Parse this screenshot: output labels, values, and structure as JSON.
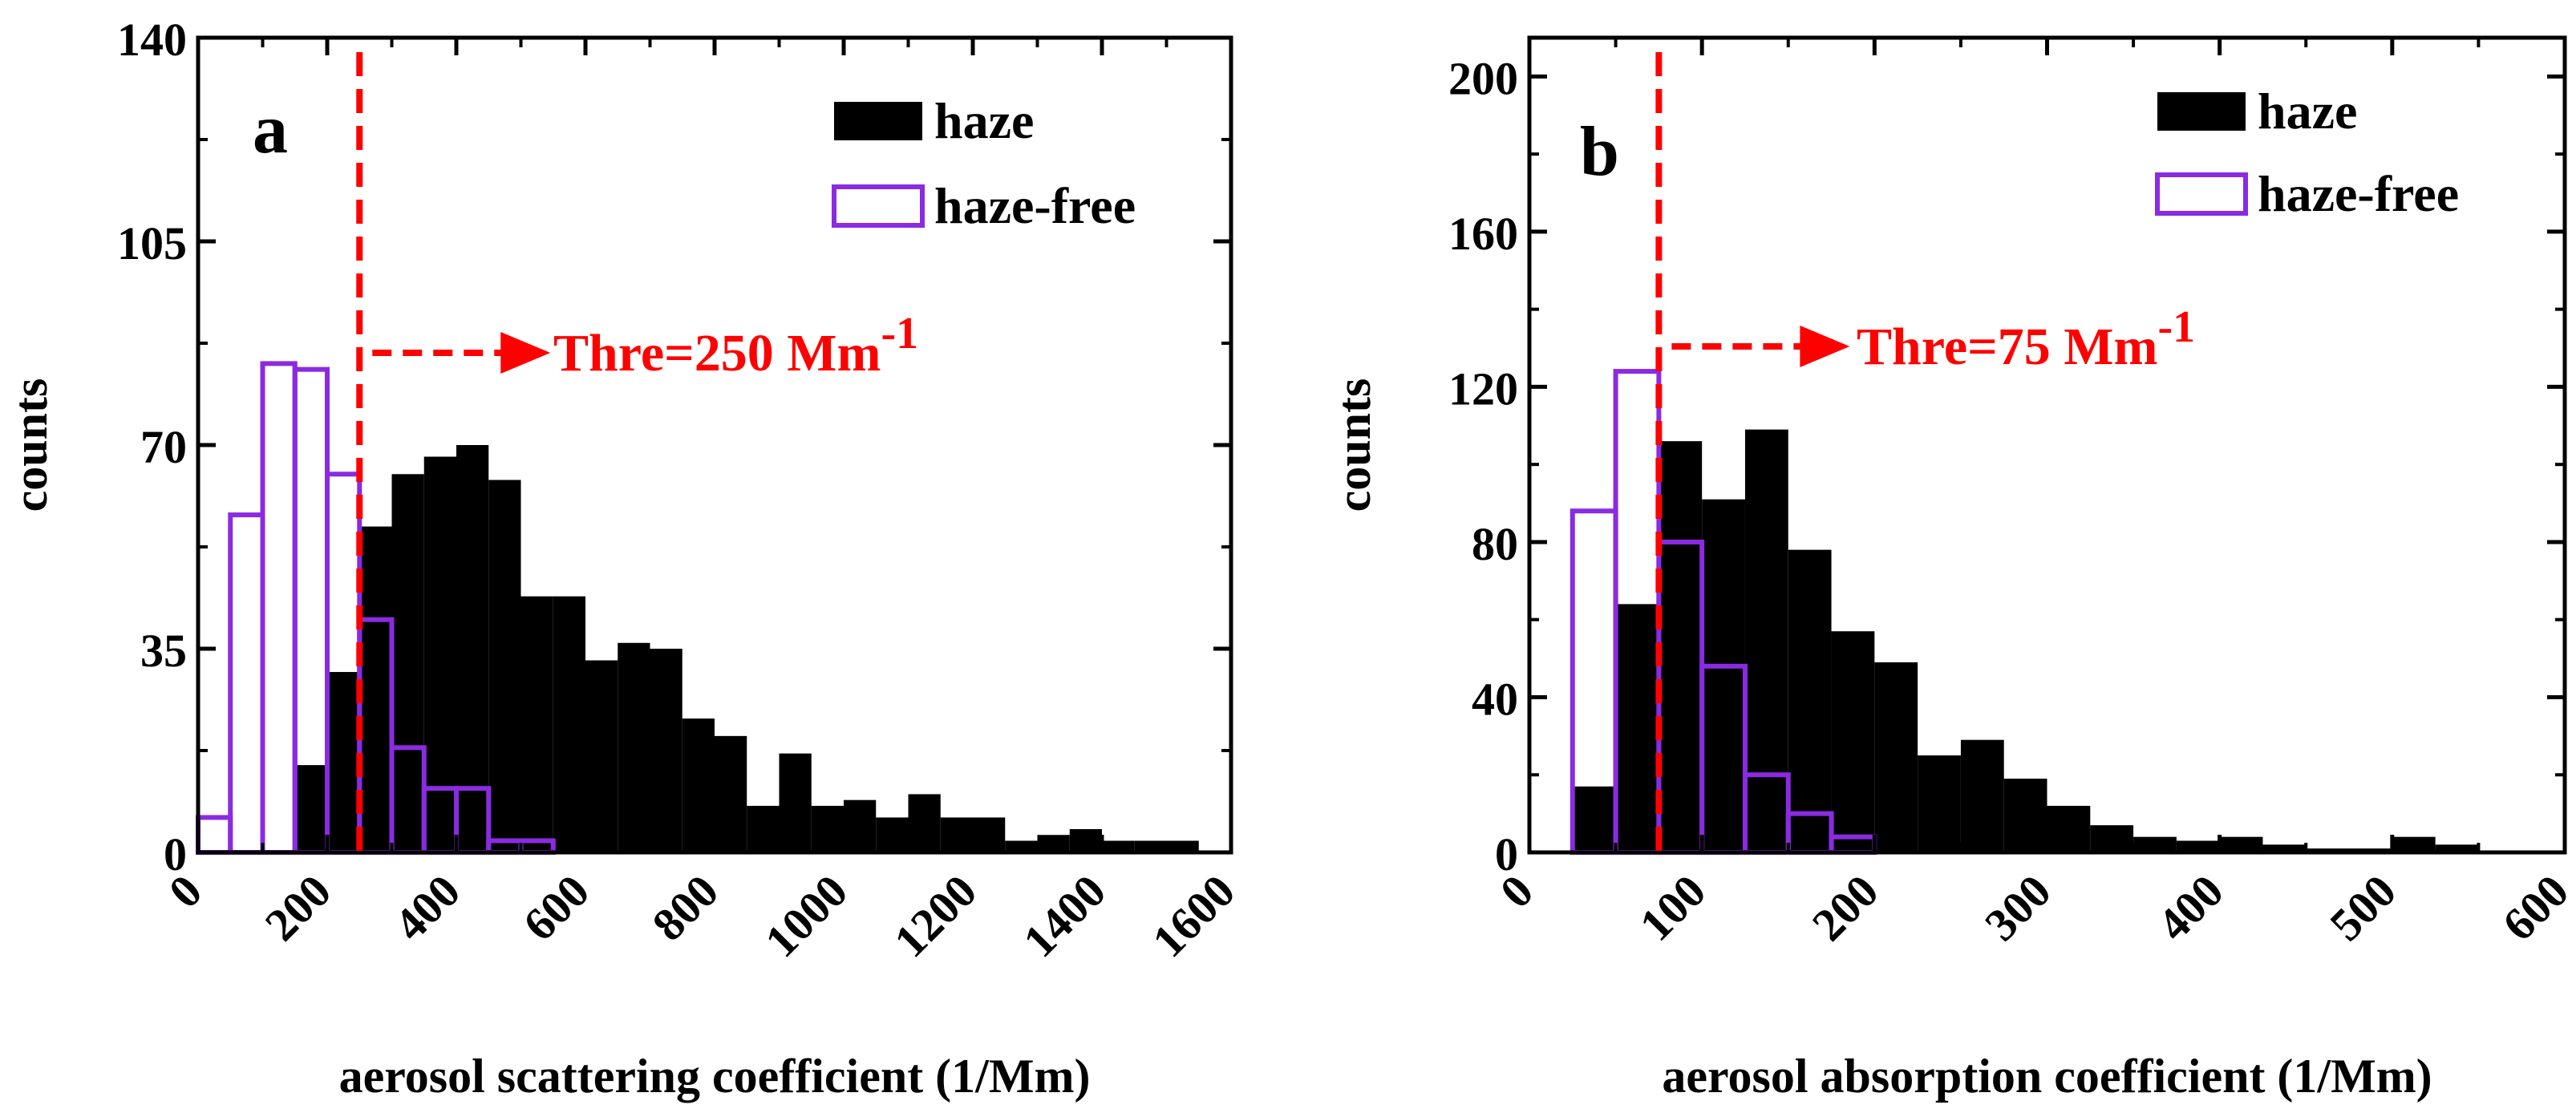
{
  "colors": {
    "haze": "#000000",
    "haze_free": "#8a2be2",
    "threshold": "#ff0000",
    "axis": "#000000"
  },
  "legend": {
    "haze_label": "haze",
    "haze_free_label": "haze-free",
    "position": "top-right"
  },
  "chart_data": [
    {
      "type": "bar",
      "histogram": true,
      "panel_label": "a",
      "xlabel": "aerosol scattering coefficient (1/Mm)",
      "ylabel": "counts",
      "xlim": [
        0,
        1600
      ],
      "ylim": [
        0,
        140
      ],
      "xticks": [
        0,
        200,
        400,
        600,
        800,
        1000,
        1200,
        1400,
        1600
      ],
      "yticks": [
        0,
        35,
        70,
        105,
        140
      ],
      "bin_width": 50,
      "threshold": {
        "value": 250,
        "label_prefix": "Thre=250 Mm",
        "label_sup": "-1"
      },
      "series": [
        {
          "name": "haze",
          "style": "filled",
          "bin_starts": [
            150,
            200,
            250,
            300,
            350,
            400,
            450,
            500,
            550,
            600,
            650,
            700,
            750,
            800,
            850,
            900,
            950,
            1000,
            1050,
            1100,
            1150,
            1200,
            1250,
            1300,
            1350,
            1400,
            1450,
            1500
          ],
          "values": [
            15,
            31,
            56,
            65,
            68,
            70,
            64,
            44,
            44,
            33,
            36,
            35,
            23,
            20,
            8,
            17,
            8,
            9,
            6,
            10,
            6,
            6,
            2,
            3,
            4,
            2,
            2,
            2
          ]
        },
        {
          "name": "haze-free",
          "style": "outline",
          "bin_starts": [
            0,
            50,
            100,
            150,
            200,
            250,
            300,
            350,
            400,
            450,
            500
          ],
          "values": [
            6,
            58,
            84,
            83,
            65,
            40,
            18,
            11,
            11,
            2,
            2
          ]
        }
      ]
    },
    {
      "type": "bar",
      "histogram": true,
      "panel_label": "b",
      "xlabel": "aerosol absorption coefficient (1/Mm)",
      "ylabel": "counts",
      "xlim": [
        0,
        600
      ],
      "ylim": [
        0,
        210
      ],
      "xticks": [
        0,
        100,
        200,
        300,
        400,
        500,
        600
      ],
      "yticks": [
        0,
        40,
        80,
        120,
        160,
        200
      ],
      "bin_width": 25,
      "threshold": {
        "value": 75,
        "label_prefix": "Thre=75 Mm",
        "label_sup": "-1"
      },
      "series": [
        {
          "name": "haze",
          "style": "filled",
          "bin_starts": [
            25,
            50,
            75,
            100,
            125,
            150,
            175,
            200,
            225,
            250,
            275,
            300,
            325,
            350,
            375,
            400,
            425,
            450,
            475,
            500,
            525
          ],
          "values": [
            17,
            64,
            106,
            91,
            109,
            78,
            57,
            49,
            25,
            29,
            19,
            12,
            7,
            4,
            3,
            4,
            2,
            1,
            1,
            4,
            2
          ]
        },
        {
          "name": "haze-free",
          "style": "outline",
          "bin_starts": [
            25,
            50,
            75,
            100,
            125,
            150,
            175
          ],
          "values": [
            88,
            124,
            80,
            48,
            20,
            10,
            4
          ]
        }
      ]
    }
  ]
}
